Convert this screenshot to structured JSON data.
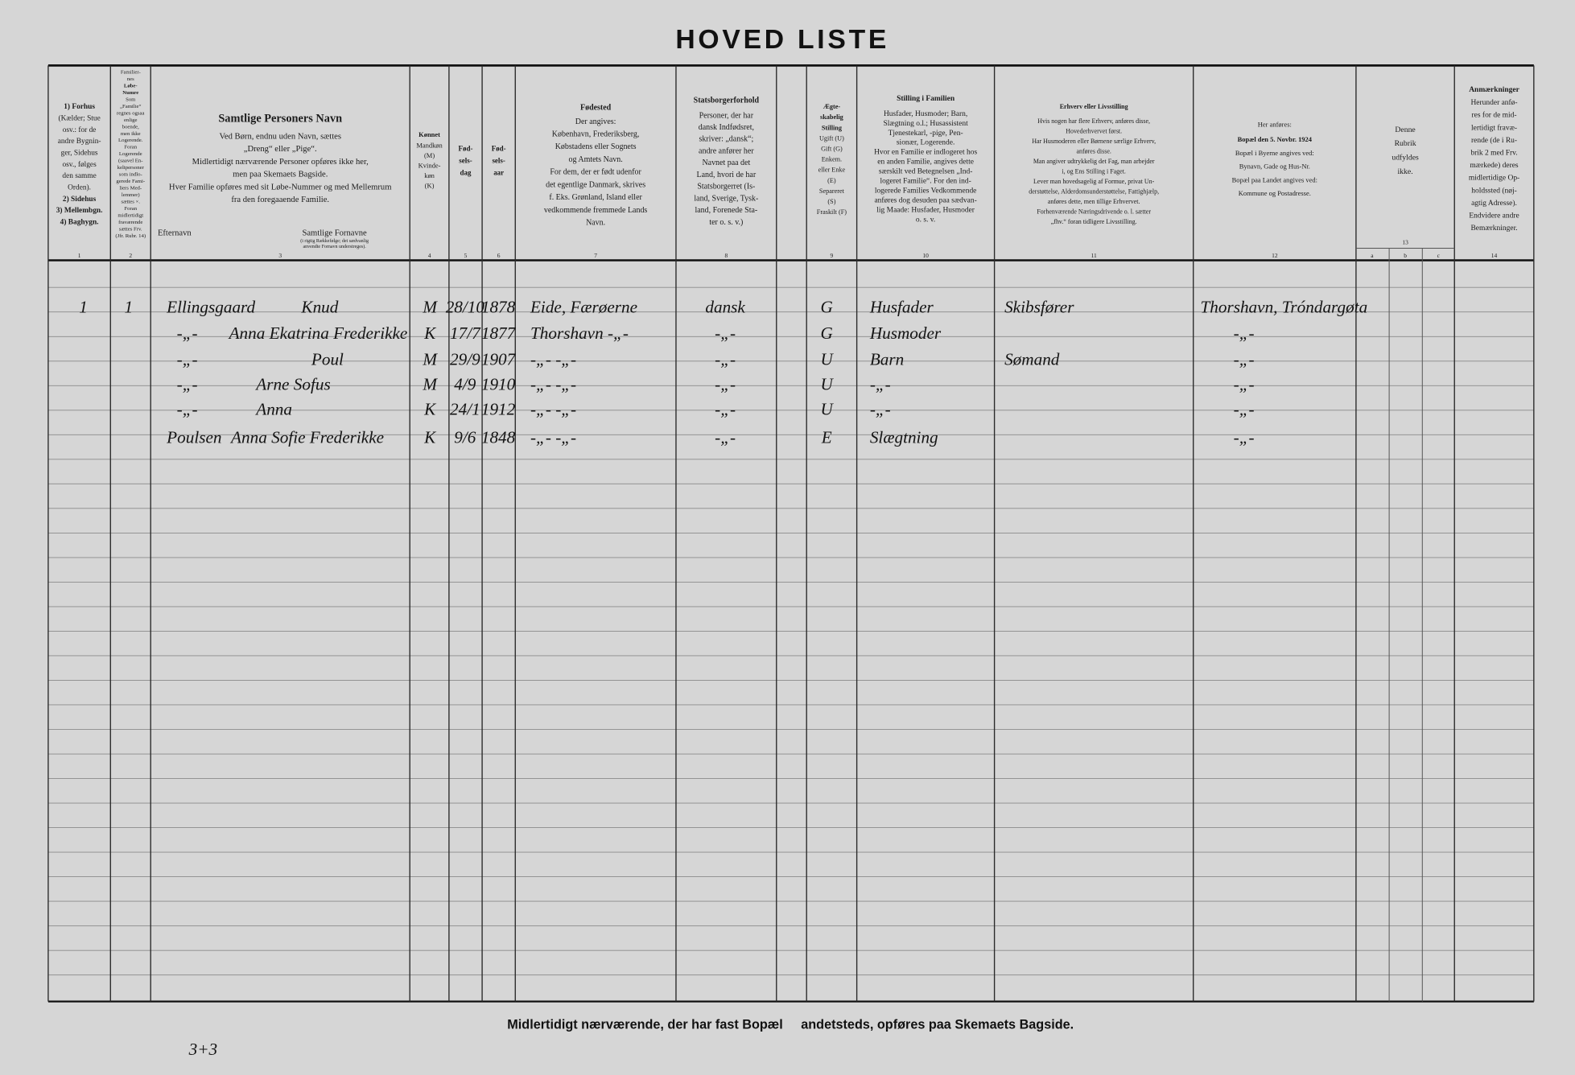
{
  "header": {
    "title": "HOVED LISTE"
  },
  "columns": [
    {
      "number": "1",
      "lines": [
        "1) Forhus",
        "(Kælder; Stue",
        "osv.: for de",
        "andre Bygnin-",
        "ger, Sidehus",
        "osv., følges",
        "den samme",
        "Orden).",
        "2) Sidehus",
        "3) Mellembgn.",
        "4) Baghygn."
      ]
    },
    {
      "number": "2",
      "lines": [
        "Familier-",
        "nes",
        "Løbe-",
        "Numre",
        "Som",
        "„Familie“",
        "regnes ogsaa",
        "enlige",
        "boende,",
        "men ikke",
        "Logerende.",
        "Foran",
        "Logerende",
        "(saavel En-",
        "keltpersoner",
        "som indlo-",
        "gerede Fami-",
        "liers Med-",
        "lemmer)",
        "sættes ×.",
        "Foran",
        "midlertidigt",
        "fraværende",
        "sættes Frv.",
        "(Jfr. Rubr. 14)"
      ]
    },
    {
      "number": "3",
      "lines": [
        "Samtlige Personers Navn",
        "Ved Børn, endnu uden Navn, sættes",
        "„Dreng“ eller „Pige“.",
        "Midlertidigt nærværende Personer opføres ikke her,",
        "men paa Skemaets Bagside.",
        "Hver Familie opføres med sit Løbe-Nummer og med Mellemrum",
        "fra den foregaaende Familie."
      ]
    },
    {
      "number": "4",
      "lines": [
        "Kønnet",
        "Mandkøn",
        "(M)",
        "Kvinde-",
        "køn",
        "(K)"
      ]
    },
    {
      "number": "5",
      "lines": [
        "Fød-",
        "sels-",
        "dag"
      ]
    },
    {
      "number": "6",
      "lines": [
        "Fød-",
        "sels-",
        "aar"
      ]
    },
    {
      "number": "7",
      "lines": [
        "Fødested",
        "Der angives:",
        "København, Frederiksberg,",
        "Købstadens eller Sognets",
        "og Amtets Navn.",
        "For dem, der er født udenfor",
        "det egentlige Danmark, skrives",
        "f. Eks. Grønland, Island eller",
        "vedkommende fremmede Lands",
        "Navn."
      ]
    },
    {
      "number": "8",
      "lines": [
        "Statsborgerforhold",
        "Personer, der har",
        "dansk Indfødsret,",
        "skriver: „dansk“;",
        "andre anfører her",
        "Navnet paa det",
        "Land, hvori de har",
        "Statsborgerret (Is-",
        "land, Sverige, Tysk-",
        "land, Forenede Sta-",
        "ter o. s. v.)"
      ]
    },
    {
      "number": "9",
      "lines": [
        "Ægte-",
        "skabelig",
        "Stilling",
        "Ugift (U)",
        "Gift (G)",
        "Enkem.",
        "eller Enke",
        "(E)",
        "Separeret",
        "(S)",
        "Fraskilt (F)"
      ]
    },
    {
      "number": "10",
      "lines": [
        "Stilling i Familien",
        "Husfader, Husmoder; Barn,",
        "Slægtning o.l.; Husassistent",
        "Tjenestekarl, -pige, Pen-",
        "sionær, Logerende.",
        "Hvor en Familie er indlogeret hos",
        "en anden Familie, angives dette",
        "særskilt ved Betegnelsen „Ind-",
        "logeret Familie“. For den ind-",
        "logerede Families Vedkommende",
        "anføres dog desuden paa sædvan-",
        "lig Maade: Husfader, Husmoder",
        "o. s. v."
      ]
    },
    {
      "number": "11",
      "lines": [
        "Erhverv eller Livsstilling",
        "Hvis nogen har flere Erhverv, anføres disse,",
        "Hovederhvervet først.",
        "Har Husmoderen eller Børnene særlige Erhverv,",
        "anføres disse.",
        "Man angiver udtrykkelig det Fag, man arbejder",
        "i, og Ens Stilling i Faget.",
        "Lever man hovedsagelig af Formue, privat Un-",
        "derstøttelse, Alderdomsunderstøttelse, Fattighjælp,",
        "anføres dette, men tillige Erhvervet.",
        "Forhenværende Næringsdrivende o. l. sætter",
        "„fhv.“ foran tidligere Livsstilling."
      ]
    },
    {
      "number": "12",
      "lines": [
        "Her anføres:",
        "Bopæl den 5. Novbr. 1924",
        "Bopæl i Byerne angives ved:",
        "Bynavn, Gade og Hus-Nr.",
        "Bopæl paa Landet angives ved:",
        "Kommune og Postadresse."
      ]
    },
    {
      "number": "13",
      "lines": [
        "Denne",
        "Rubrik",
        "udfyldes",
        "ikke."
      ],
      "sub": [
        "a",
        "b",
        "c"
      ]
    },
    {
      "number": "14",
      "lines": [
        "Anmærkninger",
        "Herunder anfø-",
        "res for de mid-",
        "lertidigt fravæ-",
        "rende (de i Ru-",
        "brik 2 med Frv.",
        "mærkede) deres",
        "midlertidige Op-",
        "holdssted (nøj-",
        "agtig Adresse).",
        "Endvidere andre",
        "Bemærkninger."
      ]
    }
  ],
  "name_subheads": {
    "surname": "Efternavn",
    "firstnames": "Samtlige Fornavne",
    "note": [
      "(i rigtig Rækkefølge; det sædvanlig",
      "anvendte Fornavn understreges)."
    ]
  },
  "rows": [
    {
      "floor": "1",
      "family": "1",
      "surname": "Ellingsgaard",
      "firstnames": "Knud",
      "sex": "M",
      "day": "28/10",
      "year": "1878",
      "birthplace": "Eide, Færøerne",
      "citizenship": "dansk",
      "marital": "G",
      "position": "Husfader",
      "occupation": "Skibsfører",
      "residence": "Thorshavn, Tróndargøta"
    },
    {
      "surname": "-„-",
      "firstnames": "Anna Ekatrina Frederikke",
      "sex": "K",
      "day": "17/7",
      "year": "1877",
      "birthplace": "Thorshavn  -„-",
      "citizenship": "-„-",
      "marital": "G",
      "position": "Husmoder",
      "residence": "-„-"
    },
    {
      "surname": "-„-",
      "firstnames": "Poul",
      "sex": "M",
      "day": "29/9",
      "year": "1907",
      "birthplace": "-„-     -„-",
      "citizenship": "-„-",
      "marital": "U",
      "position": "Barn",
      "occupation": "Sømand",
      "residence": "-„-"
    },
    {
      "surname": "-„-",
      "firstnames": "Arne Sofus",
      "sex": "M",
      "day": "4/9",
      "year": "1910",
      "birthplace": "-„-     -„-",
      "citizenship": "-„-",
      "marital": "U",
      "position": "-„-",
      "residence": "-„-"
    },
    {
      "surname": "-„-",
      "firstnames": "Anna",
      "sex": "K",
      "day": "24/1",
      "year": "1912",
      "birthplace": "-„-     -„-",
      "citizenship": "-„-",
      "marital": "U",
      "position": "-„-",
      "residence": "-„-"
    },
    {
      "surname": "Poulsen",
      "firstnames": "Anna Sofie Frederikke",
      "sex": "K",
      "day": "9/6",
      "year": "1848",
      "birthplace": "-„-     -„-",
      "citizenship": "-„-",
      "marital": "E",
      "position": "Slægtning",
      "residence": "-„-"
    }
  ],
  "footer": "Midlertidigt nærværende, der har fast Bopæl     andetsteds, opføres paa Skemaets Bagside.",
  "margin_note": "3+3"
}
